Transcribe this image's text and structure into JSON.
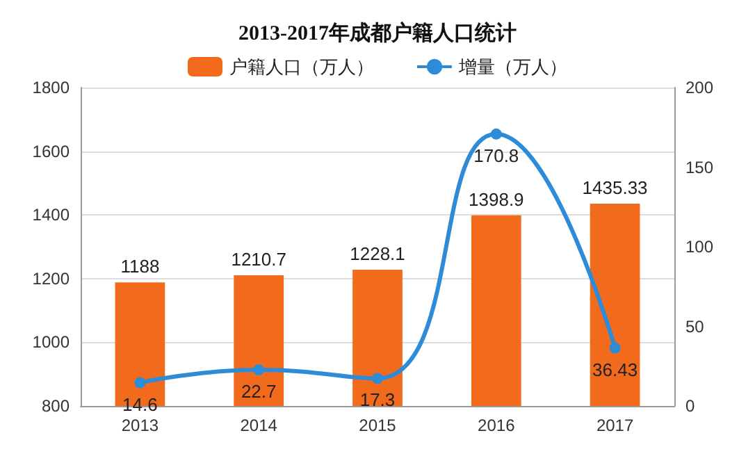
{
  "chart_data": {
    "type": "bar",
    "title": "2013-2017年成都户籍人口统计",
    "categories": [
      "2013",
      "2014",
      "2015",
      "2016",
      "2017"
    ],
    "series": [
      {
        "name": "户籍人口（万人）",
        "color": "#f26b1d",
        "values": [
          1188,
          1210.7,
          1228.1,
          1398.9,
          1435.33
        ]
      },
      {
        "name": "增量（万人）",
        "type": "line",
        "axis": "y2",
        "color": "#2e8bd8",
        "marker": "circle",
        "values": [
          14.6,
          22.7,
          17.3,
          170.8,
          36.43
        ]
      }
    ],
    "ylim": [
      800,
      1800
    ],
    "yticks": [
      800,
      1000,
      1200,
      1400,
      1600,
      1800
    ],
    "y2lim": [
      0,
      200
    ],
    "y2ticks": [
      0,
      50,
      100,
      150,
      200
    ],
    "grid": "y",
    "legend": "top",
    "data_labels": true
  }
}
